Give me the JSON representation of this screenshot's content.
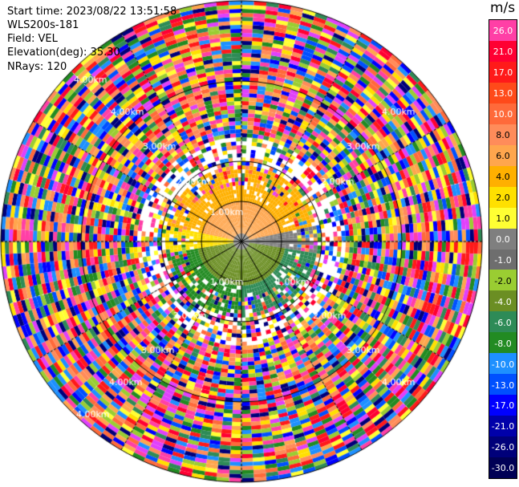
{
  "info": {
    "start_time": "Start time: 2023/08/22 13:51:58",
    "instrument": "WLS200s-181",
    "field": "Field: VEL",
    "elevation": "Elevation(deg): 35.30",
    "nrays": "NRays: 120"
  },
  "range_rings": [
    "1.00km",
    "2.00km",
    "3.00km",
    "4.00km"
  ],
  "colorbar": {
    "units": "m/s",
    "labels": [
      "26.0",
      "21.0",
      "17.0",
      "13.0",
      "10.0",
      "8.0",
      "6.0",
      "4.0",
      "2.0",
      "1.0",
      "0.0",
      "-1.0",
      "-2.0",
      "-4.0",
      "-6.0",
      "-8.0",
      "-10.0",
      "-13.0",
      "-17.0",
      "-21.0",
      "-26.0",
      "-30.0"
    ],
    "colors": [
      "#ff3fa6",
      "#ff0033",
      "#ff1a1a",
      "#ff4a1a",
      "#ff6a3a",
      "#ff8c5a",
      "#ffa64d",
      "#ffb000",
      "#ffe000",
      "#ffff33",
      "#7f7f7f",
      "#6e6e6e",
      "#9acd32",
      "#6b8e23",
      "#2e8b57",
      "#228b22",
      "#1e90ff",
      "#0050ff",
      "#0000ff",
      "#0000aa",
      "#00007a",
      "#000055"
    ]
  },
  "legend_icon": "color-scale"
}
